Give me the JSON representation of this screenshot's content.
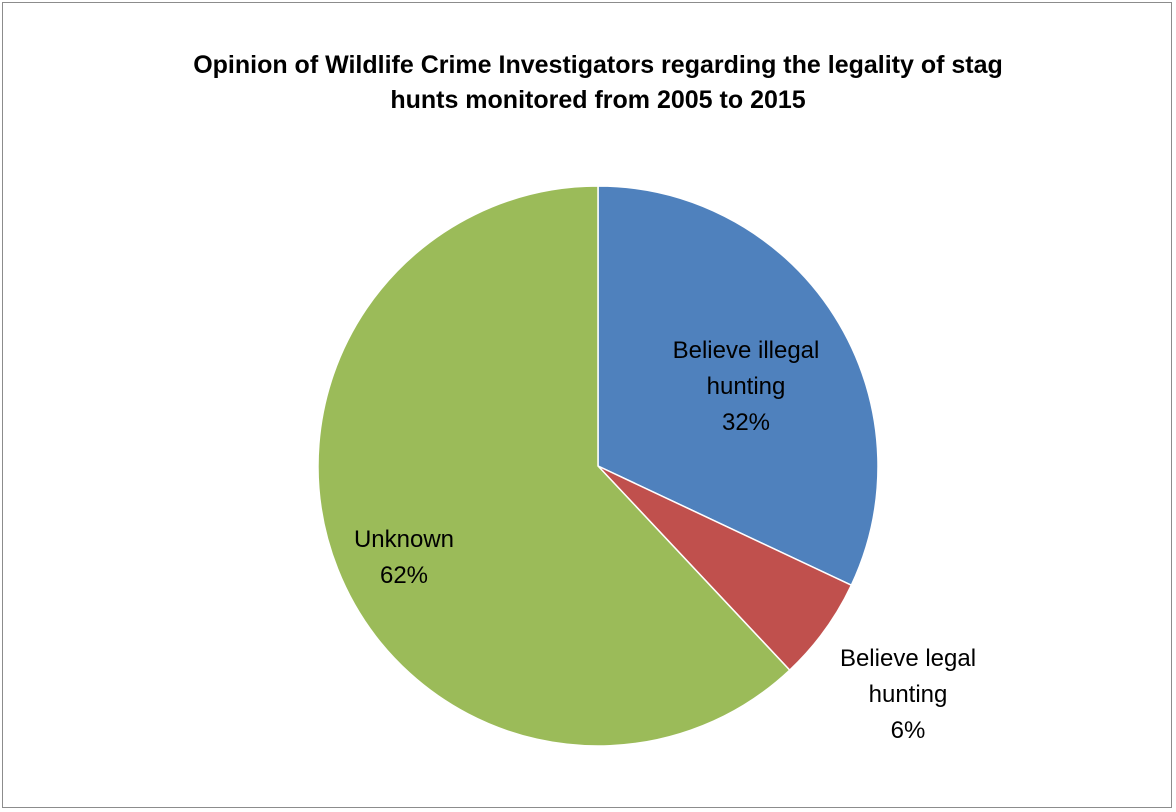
{
  "chart_data": {
    "type": "pie",
    "title_lines": [
      "Opinion of Wildlife Crime Investigators regarding the legality of stag",
      "hunts monitored from 2005 to 2015"
    ],
    "slices": [
      {
        "name": "Believe illegal hunting",
        "label_lines": [
          "Believe illegal",
          "hunting",
          "32%"
        ],
        "value": 32,
        "color": "#4f81bd"
      },
      {
        "name": "Believe legal hunting",
        "label_lines": [
          "Believe legal",
          "hunting",
          "6%"
        ],
        "value": 6,
        "color": "#c0504d"
      },
      {
        "name": "Unknown",
        "label_lines": [
          "Unknown",
          "62%"
        ],
        "value": 62,
        "color": "#9bbb59"
      }
    ],
    "start": "12 o'clock",
    "direction": "clockwise",
    "legend": "none"
  }
}
